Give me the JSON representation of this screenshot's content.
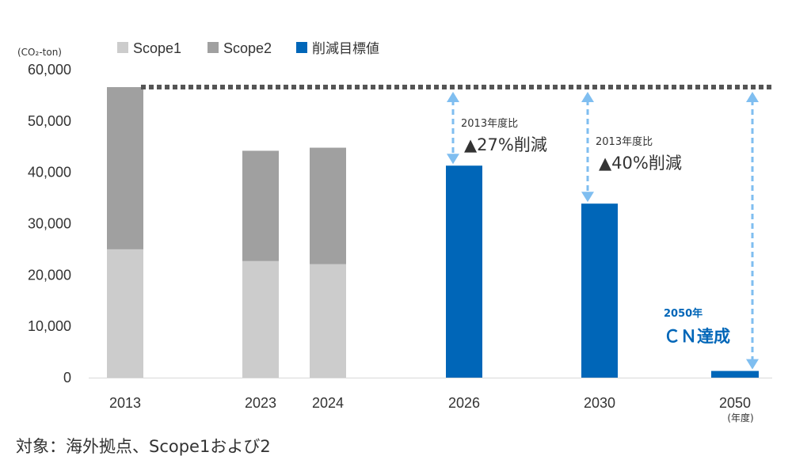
{
  "chart_data": {
    "type": "bar",
    "stacked": true,
    "categories": [
      "2013",
      "2023",
      "2024",
      "2026",
      "2030",
      "2050"
    ],
    "series": [
      {
        "name": "Scope1",
        "color": "#cccccc",
        "values": [
          25000,
          22700,
          22100,
          null,
          null,
          null
        ]
      },
      {
        "name": "Scope2",
        "color": "#a0a0a0",
        "values": [
          31600,
          21500,
          22700,
          null,
          null,
          null
        ]
      },
      {
        "name": "削減目標値",
        "color": "#0066b8",
        "values": [
          null,
          null,
          null,
          41300,
          33900,
          1300
        ]
      }
    ],
    "y_unit_label": "(CO₂-ton)",
    "x_unit_label": "(年度)",
    "ylim": [
      0,
      60000
    ],
    "yticks": [
      "0",
      "10,000",
      "20,000",
      "30,000",
      "40,000",
      "50,000",
      "60,000"
    ],
    "reference_line": {
      "value": 56600,
      "style": "dotted",
      "color": "#555555"
    },
    "legend_position": "top-left",
    "arrow_color": "#7fbef0",
    "annotations": [
      {
        "category": "2026",
        "line1": "2013年度比",
        "line2": "▲27%削減"
      },
      {
        "category": "2030",
        "line1": "2013年度比",
        "line2": "▲40%削減"
      },
      {
        "category": "2050",
        "line1": "2050年",
        "line2": "ＣＮ達成",
        "color": "#0066b8"
      }
    ]
  },
  "footnote": "対象：海外拠点、Scope1および2"
}
